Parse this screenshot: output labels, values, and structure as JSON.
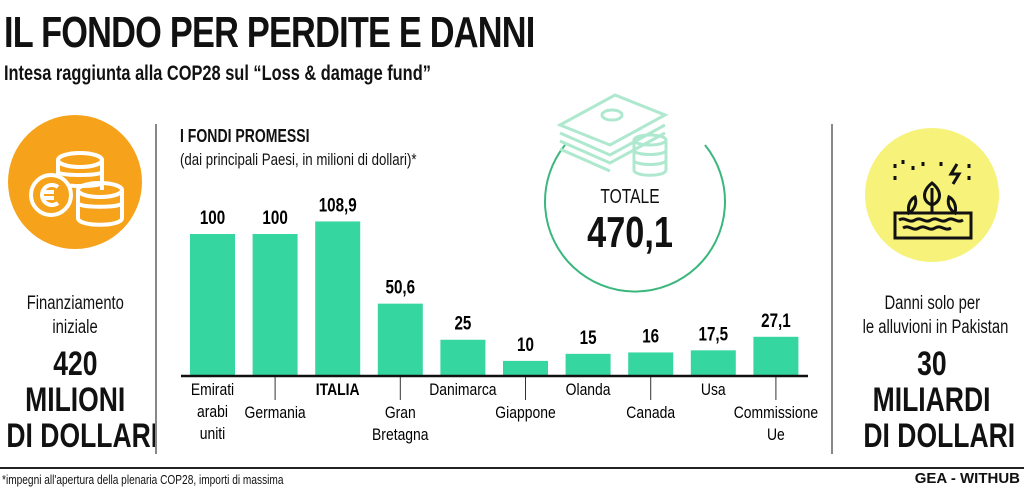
{
  "header": {
    "title": "IL FONDO PER PERDITE E DANNI",
    "subtitle": "Intesa raggiunta alla COP28 sul “Loss & damage fund”"
  },
  "left_panel": {
    "icon": "euro-coins-icon",
    "label_line1": "Finanziamento",
    "label_line2": "iniziale",
    "value_line1": "420",
    "value_line2": "MILIONI",
    "value_line3": "DI DOLLARI",
    "color": "#f7a21b"
  },
  "right_panel": {
    "icon": "flood-plants-icon",
    "label_line1": "Danni solo per",
    "label_line2": "le alluvioni in Pakistan",
    "value_line1": "30",
    "value_line2": "MILIARDI",
    "value_line3": "DI DOLLARI",
    "color": "#f6f27a"
  },
  "total": {
    "icon": "money-stack-icon",
    "label": "TOTALE",
    "value": "470,1",
    "color": "#3bb77e"
  },
  "chart_data": {
    "type": "bar",
    "title": "I FONDI PROMESSI",
    "subtitle": "(dai principali Paesi, in milioni di dollari)*",
    "categories": [
      [
        "Emirati",
        "arabi",
        "uniti"
      ],
      [
        "Germania"
      ],
      [
        "ITALIA"
      ],
      [
        "Gran",
        "Bretagna"
      ],
      [
        "Danimarca"
      ],
      [
        "Giappone"
      ],
      [
        "Olanda"
      ],
      [
        "Canada"
      ],
      [
        "Usa"
      ],
      [
        "Commissione",
        "Ue"
      ]
    ],
    "values": [
      100,
      100,
      108.9,
      50.6,
      25,
      10,
      15,
      16,
      17.5,
      27.1
    ],
    "value_labels": [
      "100",
      "100",
      "108,9",
      "50,6",
      "25",
      "10",
      "15",
      "16",
      "17,5",
      "27,1"
    ],
    "ylim": [
      0,
      110
    ],
    "bar_color": "#36d6a0",
    "grid": false
  },
  "footer": {
    "footnote": "*impegni all'apertura della plenaria COP28, importi di massima",
    "credit": "GEA - WITHUB"
  }
}
